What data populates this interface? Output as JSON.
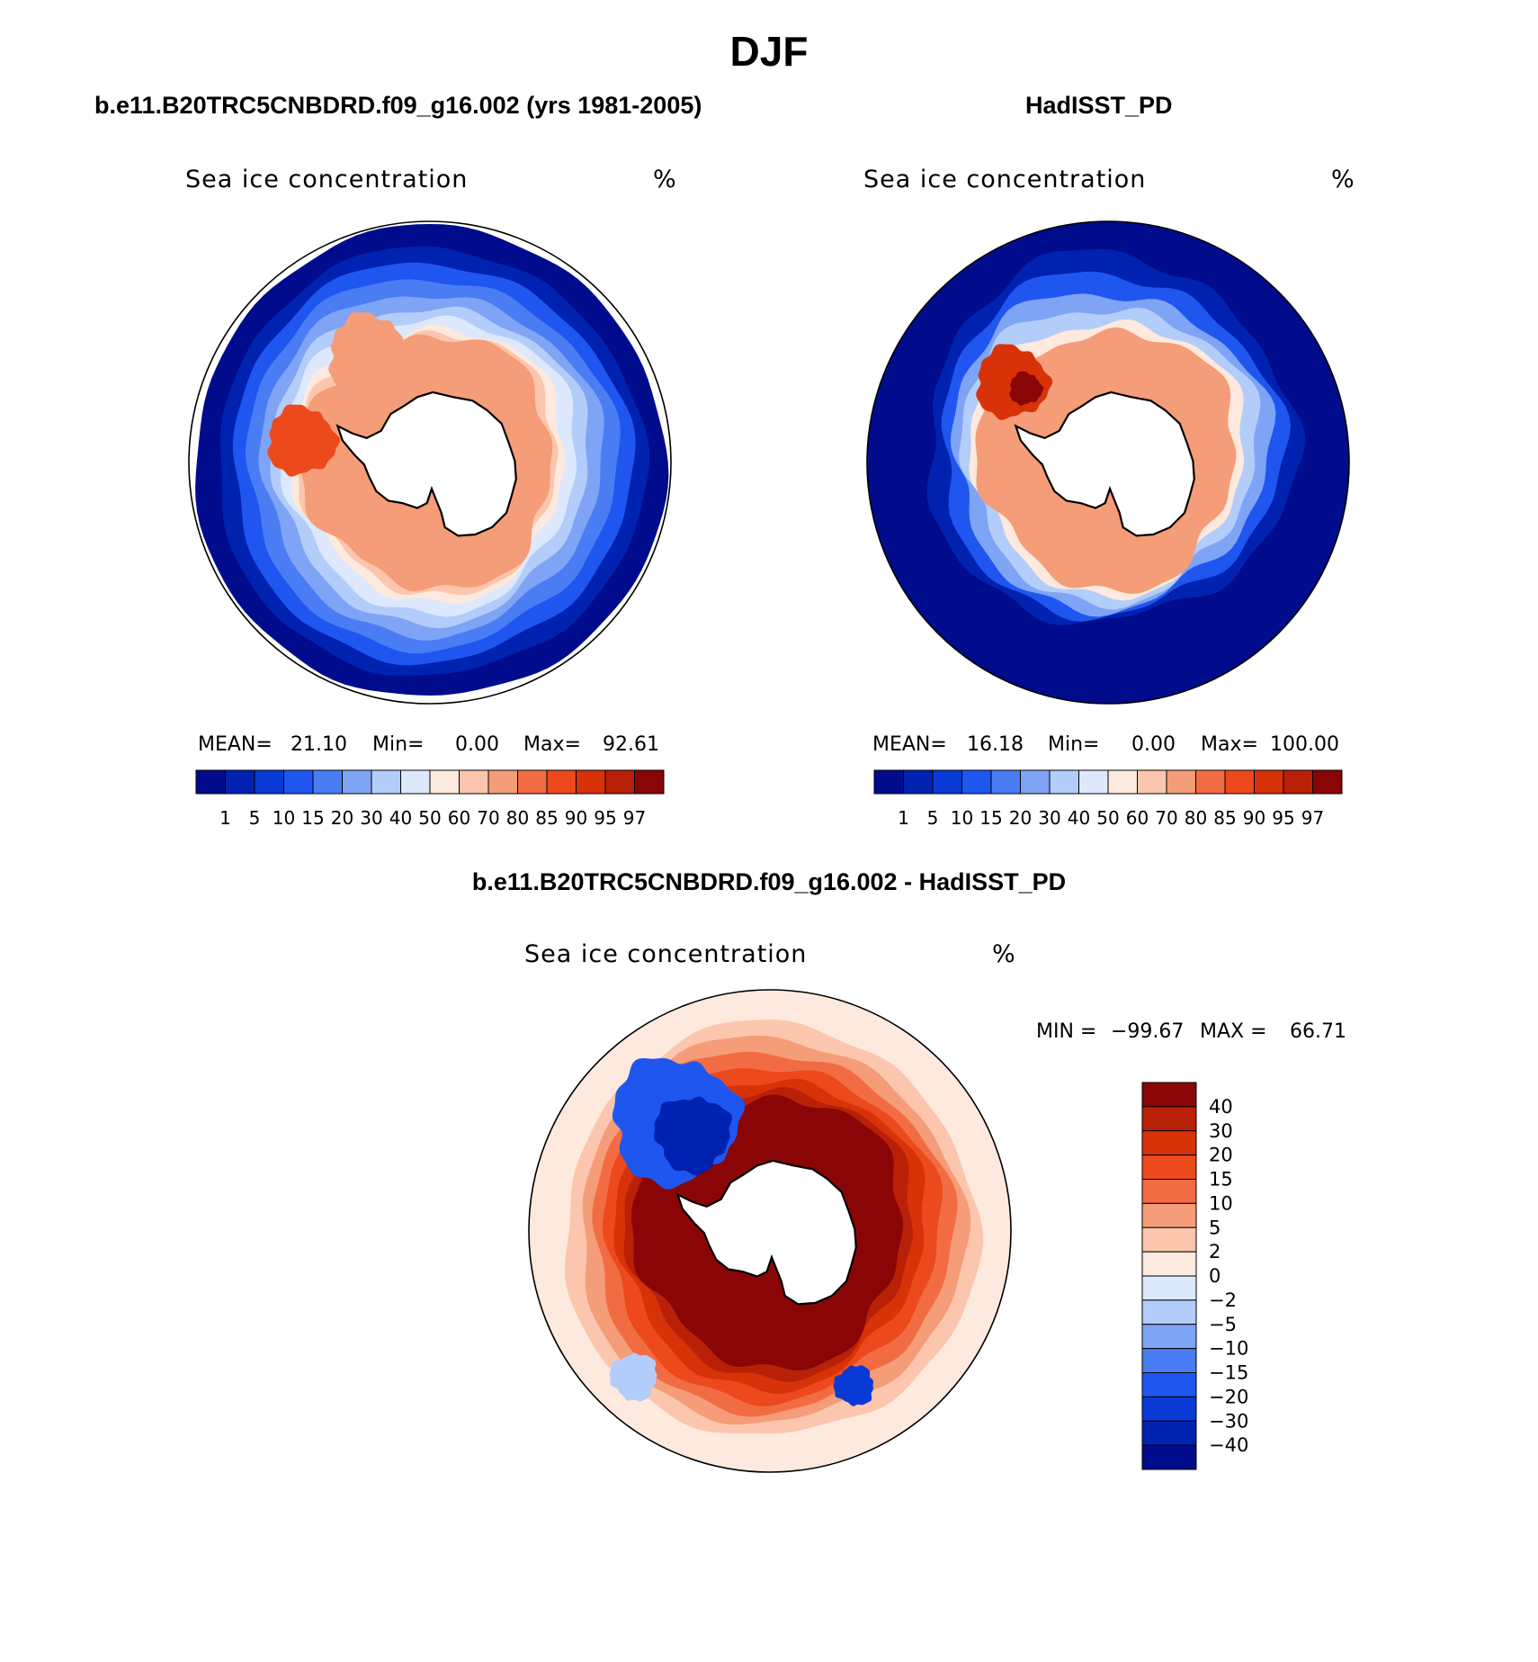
{
  "figure": {
    "title": "DJF",
    "panel_left_title": "b.e11.B20TRC5CNBDRD.f09_g16.002 (yrs 1981-2005)",
    "panel_right_title": "HadISST_PD",
    "panel_bottom_title": "b.e11.B20TRC5CNBDRD.f09_g16.002 - HadISST_PD"
  },
  "chart_data": [
    {
      "type": "heatmap",
      "panel": "model",
      "variable": "Sea ice concentration",
      "units": "%",
      "stats": {
        "mean_label": "MEAN=",
        "mean": "21.10",
        "min_label": "Min=",
        "min": "0.00",
        "max_label": "Max=",
        "max": "92.61"
      },
      "colorbar_levels": [
        "1",
        "5",
        "10",
        "15",
        "20",
        "30",
        "40",
        "50",
        "60",
        "70",
        "80",
        "85",
        "90",
        "95",
        "97"
      ],
      "colorbar_colors": [
        "#000c8c",
        "#0022b0",
        "#0a3ad6",
        "#1f56f0",
        "#4a7cf4",
        "#7fa4f6",
        "#b3cdfa",
        "#dde8fc",
        "#fde9dd",
        "#fbc6ad",
        "#f59c78",
        "#f26c43",
        "#ec4a1c",
        "#d83208",
        "#b82008",
        "#8a0606"
      ]
    },
    {
      "type": "heatmap",
      "panel": "observations",
      "variable": "Sea ice concentration",
      "units": "%",
      "stats": {
        "mean_label": "MEAN=",
        "mean": "16.18",
        "min_label": "Min=",
        "min": "0.00",
        "max_label": "Max=",
        "max": "100.00"
      },
      "colorbar_levels": [
        "1",
        "5",
        "10",
        "15",
        "20",
        "30",
        "40",
        "50",
        "60",
        "70",
        "80",
        "85",
        "90",
        "95",
        "97"
      ],
      "colorbar_colors": [
        "#000c8c",
        "#0022b0",
        "#0a3ad6",
        "#1f56f0",
        "#4a7cf4",
        "#7fa4f6",
        "#b3cdfa",
        "#dde8fc",
        "#fde9dd",
        "#fbc6ad",
        "#f59c78",
        "#f26c43",
        "#ec4a1c",
        "#d83208",
        "#b82008",
        "#8a0606"
      ]
    },
    {
      "type": "heatmap",
      "panel": "difference",
      "variable": "Sea ice concentration",
      "units": "%",
      "stats": {
        "min_label": "MIN =",
        "min": "−99.67",
        "max_label": "MAX =",
        "max": "66.71"
      },
      "colorbar_levels": [
        "40",
        "30",
        "20",
        "15",
        "10",
        "5",
        "2",
        "0",
        "−2",
        "−5",
        "−10",
        "−15",
        "−20",
        "−30",
        "−40"
      ],
      "colorbar_colors": [
        "#8a0606",
        "#b82008",
        "#d83208",
        "#ec4a1c",
        "#f26c43",
        "#f59c78",
        "#fbc6ad",
        "#fde9dd",
        "#dde8fc",
        "#b3cdfa",
        "#7fa4f6",
        "#4a7cf4",
        "#1f56f0",
        "#0a3ad6",
        "#0022b0",
        "#000c8c"
      ]
    }
  ]
}
